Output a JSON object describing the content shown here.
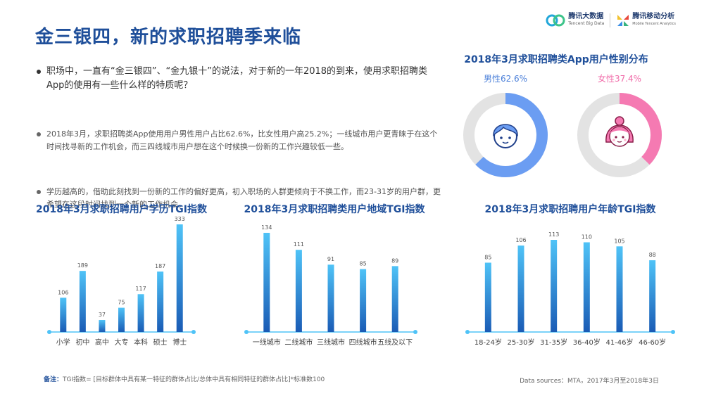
{
  "header": {
    "title": "金三银四，新的求职招聘季来临",
    "logo_left_cn": "腾讯大数据",
    "logo_left_en": "Tencent Big Data",
    "logo_right_cn": "腾讯移动分析",
    "logo_right_en": "Mobile Tencent Analytics"
  },
  "bullets": [
    "职场中，一直有“金三银四”、“金九银十”的说法，对于新的一年2018的到来，使用求职招聘类App的使用有一些什么样的特质呢？",
    "2018年3月，求职招聘类App使用用户男性用户占比62.6%，比女性用户高25.2%；一线城市用户更青睐于在这个时间找寻新的工作机会，而三四线城市用户想在这个时候换一份新的工作兴趣较低一些。",
    "学历越高的，借助此刻找到一份新的工作的偏好更高，初入职场的人群更倾向于不换工作，而23-31岁的用户群，更希望在这段时间找到一个新的工作机会。"
  ],
  "colors": {
    "title": "#1f4f9a",
    "male": "#6b9df2",
    "female": "#f57ab2",
    "ring_bg": "#e3e3e3",
    "bar_top": "#4fc3f7",
    "bar_bottom": "#1a5bb5",
    "axis": "#4fc3f7"
  },
  "footer": {
    "note_label": "备注：",
    "note_text": "TGI指数= [目标群体中具有某一特征的群体占比/总体中具有相同特征的群体占比]*标准数100",
    "source": "Data sources：MTA，2017年3月至2018年3日"
  },
  "chart_data": [
    {
      "type": "pie",
      "title": "2018年3月求职招聘类App用户性别分布",
      "slices": [
        {
          "name": "男性",
          "label": "男性62.6%",
          "value": 62.6,
          "icon": "male-face-icon"
        },
        {
          "name": "女性",
          "label": "女性37.4%",
          "value": 37.4,
          "icon": "female-face-icon"
        }
      ]
    },
    {
      "type": "bar",
      "title": "2018年3月求职招聘用户学历TGI指数",
      "categories": [
        "小学",
        "初中",
        "高中",
        "大专",
        "本科",
        "硕士",
        "博士"
      ],
      "values": [
        106,
        189,
        37,
        75,
        117,
        187,
        333
      ],
      "ylim": [
        0,
        333
      ]
    },
    {
      "type": "bar",
      "title": "2018年3月求职招聘类用户地域TGI指数",
      "categories": [
        "一线城市",
        "二线城市",
        "三线城市",
        "四线城市",
        "五线及以下"
      ],
      "values": [
        134,
        111,
        91,
        85,
        89
      ],
      "ylim": [
        0,
        134
      ]
    },
    {
      "type": "bar",
      "title": "2018年3月求职招聘用户年龄TGI指数",
      "categories": [
        "18-24岁",
        "25-30岁",
        "31-35岁",
        "36-40岁",
        "41-46岁",
        "46-60岁"
      ],
      "values": [
        85,
        106,
        113,
        110,
        105,
        88
      ],
      "ylim": [
        0,
        113
      ]
    }
  ]
}
